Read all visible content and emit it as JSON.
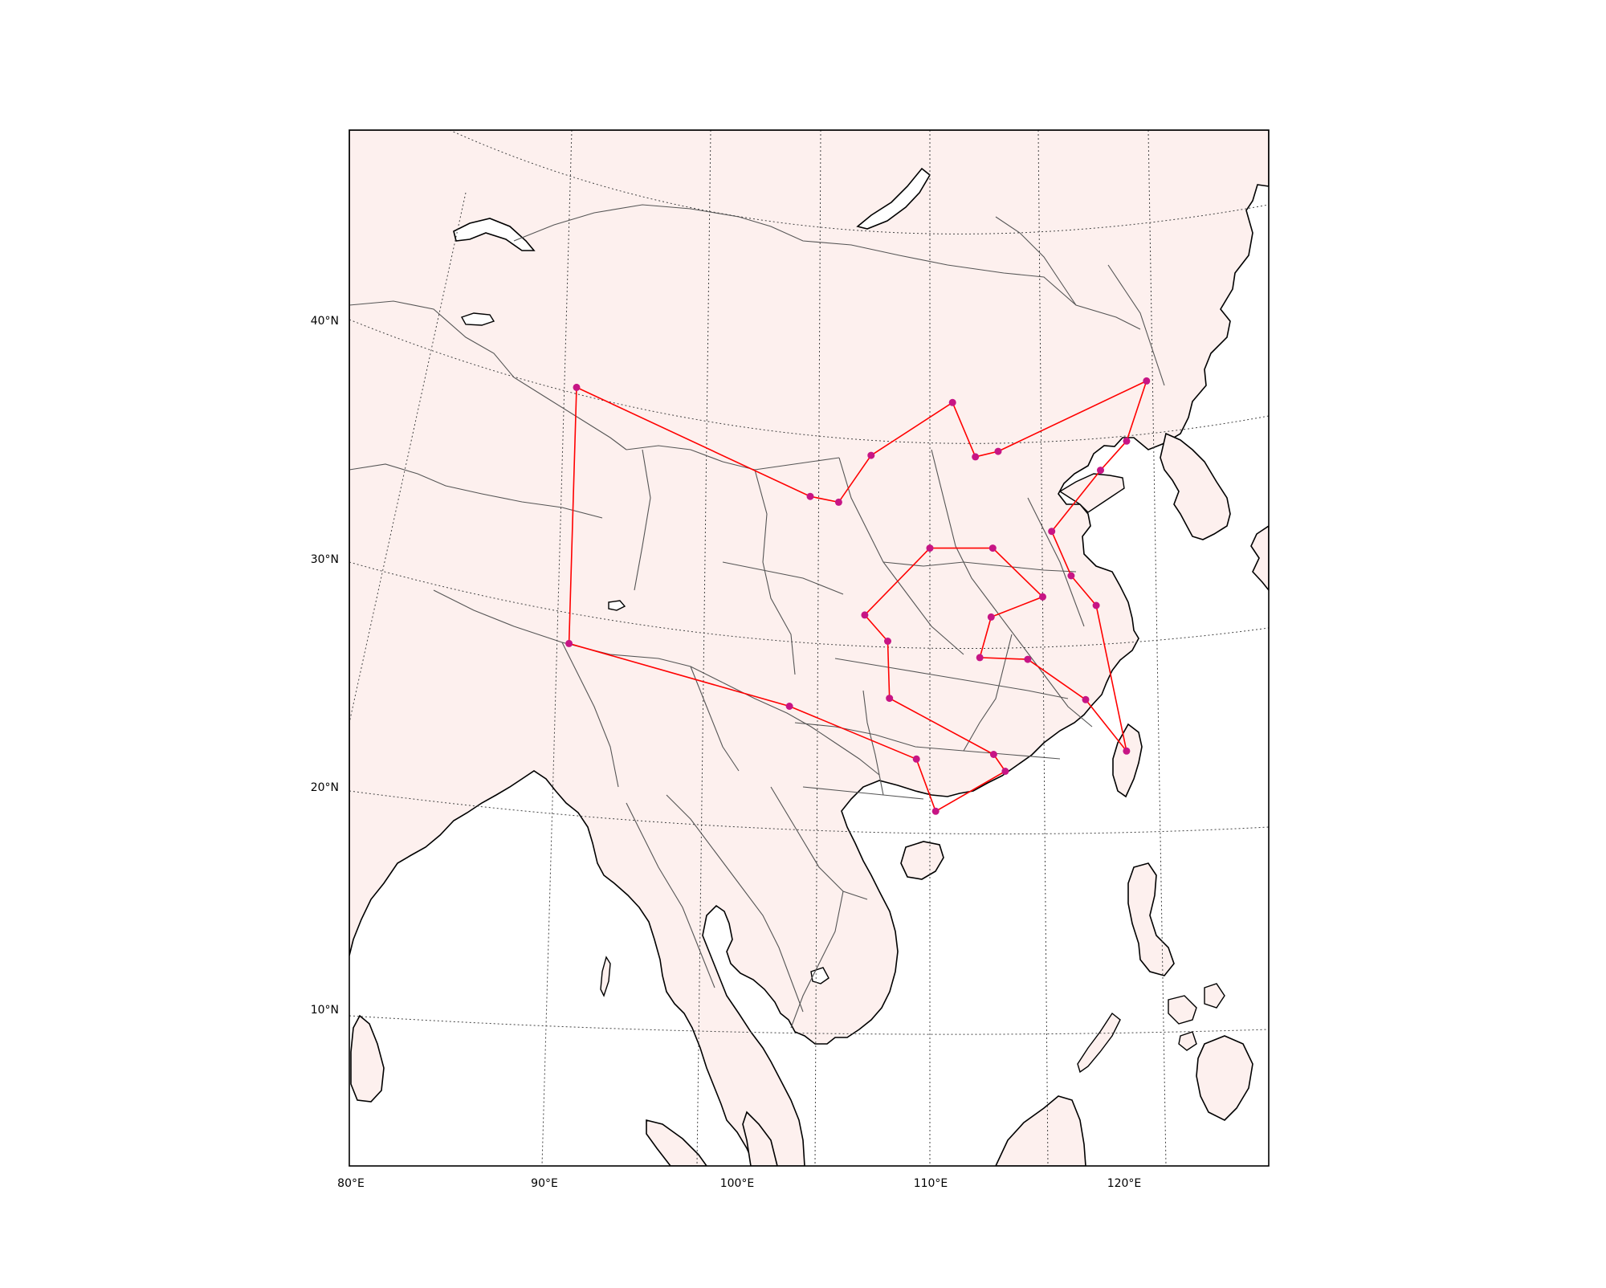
{
  "map": {
    "land_color": "#fdf0ee",
    "ocean_color": "#ffffff",
    "coast_color": "#000000",
    "border_color": "#555555",
    "grid_color": "#444444",
    "route_color": "#ff0000",
    "city_color": "#c71585"
  },
  "lat_labels": [
    "40°N",
    "30°N",
    "20°N",
    "10°N"
  ],
  "lon_labels": [
    "80°E",
    "90°E",
    "100°E",
    "110°E",
    "120°E"
  ],
  "route": [
    {
      "lon": 121.5,
      "lat": 38.9
    },
    {
      "lon": 120.4,
      "lat": 36.1
    },
    {
      "lon": 119.0,
      "lat": 34.6
    },
    {
      "lon": 116.4,
      "lat": 31.6
    },
    {
      "lon": 117.4,
      "lat": 29.8
    },
    {
      "lon": 118.7,
      "lat": 28.7
    },
    {
      "lon": 120.2,
      "lat": 22.6
    },
    {
      "lon": 118.1,
      "lat": 24.5
    },
    {
      "lon": 115.1,
      "lat": 25.9
    },
    {
      "lon": 112.6,
      "lat": 25.8
    },
    {
      "lon": 113.2,
      "lat": 27.6
    },
    {
      "lon": 115.9,
      "lat": 28.7
    },
    {
      "lon": 113.3,
      "lat": 30.6
    },
    {
      "lon": 110.0,
      "lat": 30.5
    },
    {
      "lon": 106.6,
      "lat": 27.7
    },
    {
      "lon": 107.8,
      "lat": 26.5
    },
    {
      "lon": 107.9,
      "lat": 24.0
    },
    {
      "lon": 113.3,
      "lat": 21.6
    },
    {
      "lon": 113.9,
      "lat": 20.9
    },
    {
      "lon": 110.3,
      "lat": 19.0
    },
    {
      "lon": 109.3,
      "lat": 21.3
    },
    {
      "lon": 102.7,
      "lat": 24.1
    },
    {
      "lon": 91.1,
      "lat": 29.6
    },
    {
      "lon": 91.2,
      "lat": 40.6
    },
    {
      "lon": 103.7,
      "lat": 33.1
    },
    {
      "lon": 105.2,
      "lat": 32.7
    },
    {
      "lon": 106.9,
      "lat": 34.6
    },
    {
      "lon": 111.2,
      "lat": 36.8
    },
    {
      "lon": 112.4,
      "lat": 34.5
    },
    {
      "lon": 113.6,
      "lat": 34.8
    },
    {
      "lon": 121.5,
      "lat": 38.9
    }
  ]
}
